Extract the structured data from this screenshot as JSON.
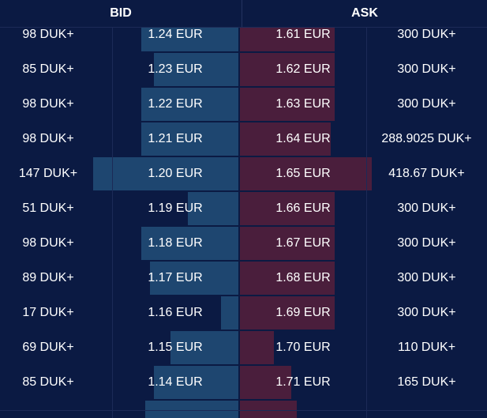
{
  "header": {
    "bid_label": "BID",
    "ask_label": "ASK"
  },
  "rows": [
    {
      "bid_qty": "98 DUK+",
      "bid_price": "1.24 EUR",
      "ask_price": "1.61 EUR",
      "ask_qty": "300 DUK+",
      "bid_depth": 0.67,
      "ask_depth": 0.72
    },
    {
      "bid_qty": "85 DUK+",
      "bid_price": "1.23 EUR",
      "ask_price": "1.62 EUR",
      "ask_qty": "300 DUK+",
      "bid_depth": 0.58,
      "ask_depth": 0.72
    },
    {
      "bid_qty": "98 DUK+",
      "bid_price": "1.22 EUR",
      "ask_price": "1.63 EUR",
      "ask_qty": "300 DUK+",
      "bid_depth": 0.67,
      "ask_depth": 0.72
    },
    {
      "bid_qty": "98 DUK+",
      "bid_price": "1.21 EUR",
      "ask_price": "1.64 EUR",
      "ask_qty": "288.9025 DUK+",
      "bid_depth": 0.67,
      "ask_depth": 0.69
    },
    {
      "bid_qty": "147 DUK+",
      "bid_price": "1.20 EUR",
      "ask_price": "1.65 EUR",
      "ask_qty": "418.67 DUK+",
      "bid_depth": 1.0,
      "ask_depth": 1.0
    },
    {
      "bid_qty": "51 DUK+",
      "bid_price": "1.19 EUR",
      "ask_price": "1.66 EUR",
      "ask_qty": "300 DUK+",
      "bid_depth": 0.35,
      "ask_depth": 0.72
    },
    {
      "bid_qty": "98 DUK+",
      "bid_price": "1.18 EUR",
      "ask_price": "1.67 EUR",
      "ask_qty": "300 DUK+",
      "bid_depth": 0.67,
      "ask_depth": 0.72
    },
    {
      "bid_qty": "89 DUK+",
      "bid_price": "1.17 EUR",
      "ask_price": "1.68 EUR",
      "ask_qty": "300 DUK+",
      "bid_depth": 0.61,
      "ask_depth": 0.72
    },
    {
      "bid_qty": "17 DUK+",
      "bid_price": "1.16 EUR",
      "ask_price": "1.69 EUR",
      "ask_qty": "300 DUK+",
      "bid_depth": 0.12,
      "ask_depth": 0.72
    },
    {
      "bid_qty": "69 DUK+",
      "bid_price": "1.15 EUR",
      "ask_price": "1.70 EUR",
      "ask_qty": "110 DUK+",
      "bid_depth": 0.47,
      "ask_depth": 0.26
    },
    {
      "bid_qty": "85 DUK+",
      "bid_price": "1.14 EUR",
      "ask_price": "1.71 EUR",
      "ask_qty": "165 DUK+",
      "bid_depth": 0.58,
      "ask_depth": 0.39
    },
    {
      "bid_qty": "",
      "bid_price": "",
      "ask_price": "",
      "ask_qty": "",
      "bid_depth": 0.64,
      "ask_depth": 0.43
    }
  ],
  "colors": {
    "background": "#0b1a43",
    "bid_bar": "#1e4670",
    "ask_bar": "#4a1e3c",
    "text": "#ffffff"
  }
}
